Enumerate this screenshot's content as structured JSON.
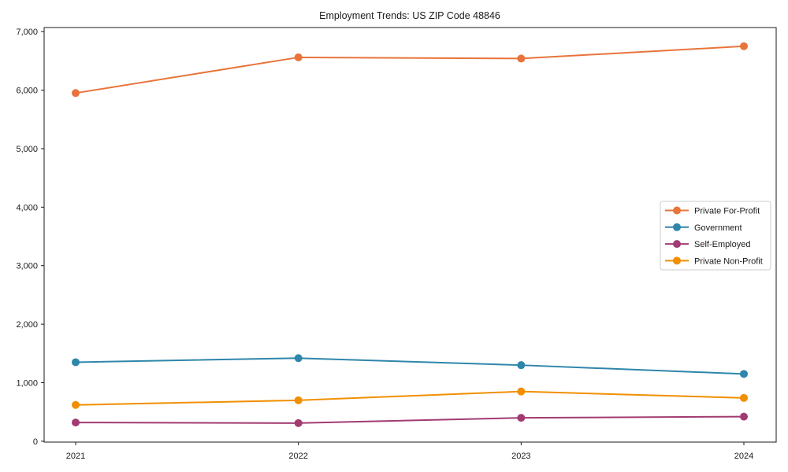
{
  "figure": {
    "background_color": "#ffffff",
    "spine_color": "#1a1a1a",
    "text_color": "#1a1a1a",
    "legend_border_color": "#cccccc",
    "legend_background_color": "#ffffff"
  },
  "chart_data": {
    "type": "line",
    "title": "Employment Trends: US ZIP Code 48846",
    "xlabel": "",
    "ylabel": "",
    "categories": [
      "2021",
      "2022",
      "2023",
      "2024"
    ],
    "series": [
      {
        "name": "Private For-Profit",
        "color": "#e8743b",
        "values": [
          5950,
          6560,
          6540,
          6750
        ]
      },
      {
        "name": "Government",
        "color": "#2e86ab",
        "values": [
          1350,
          1420,
          1300,
          1150
        ]
      },
      {
        "name": "Self-Employed",
        "color": "#a23b72",
        "values": [
          320,
          310,
          400,
          420
        ]
      },
      {
        "name": "Private Non-Profit",
        "color": "#f18f01",
        "values": [
          620,
          700,
          850,
          740
        ]
      }
    ],
    "yticks": [
      0,
      1000,
      2000,
      3000,
      4000,
      5000,
      6000,
      7000
    ],
    "ytick_labels": [
      "0",
      "1,000",
      "2,000",
      "3,000",
      "4,000",
      "5,000",
      "6,000",
      "7,000"
    ],
    "ylim": [
      -15,
      7070
    ],
    "grid": false,
    "marker": "circle",
    "legend_position": "center-right"
  }
}
